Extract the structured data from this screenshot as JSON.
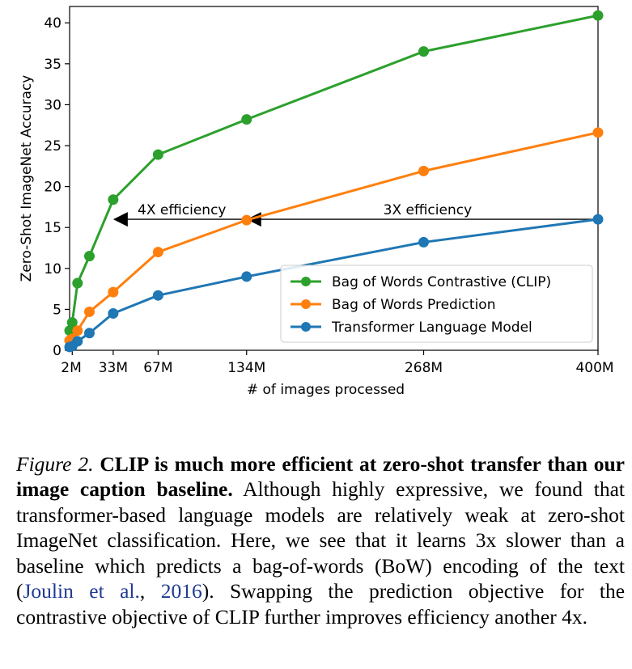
{
  "chart_data": {
    "type": "line",
    "xlabel": "# of images processed",
    "ylabel": "Zero-Shot ImageNet Accuracy",
    "x_tick_labels": [
      "2M",
      "33M",
      "67M",
      "134M",
      "268M",
      "400M"
    ],
    "x_ticks": [
      2,
      33,
      67,
      134,
      268,
      400
    ],
    "xlim": [
      0,
      400
    ],
    "ylim": [
      0,
      42
    ],
    "y_ticks": [
      0,
      5,
      10,
      15,
      20,
      25,
      30,
      35,
      40
    ],
    "grid": false,
    "legend_position": "lower-right",
    "series": [
      {
        "name": "Bag of Words Contrastive (CLIP)",
        "color": "#2ca02c",
        "x": [
          0,
          2,
          6,
          15,
          33,
          67,
          134,
          268,
          400
        ],
        "y": [
          2.4,
          3.4,
          8.2,
          11.5,
          18.4,
          23.9,
          28.2,
          36.5,
          40.9
        ]
      },
      {
        "name": "Bag of Words Prediction",
        "color": "#ff7f0e",
        "x": [
          0,
          2,
          6,
          15,
          33,
          67,
          134,
          268,
          400
        ],
        "y": [
          1.2,
          1.4,
          2.4,
          4.7,
          7.1,
          12.0,
          15.9,
          21.9,
          26.6
        ]
      },
      {
        "name": "Transformer Language Model",
        "color": "#1f77b4",
        "x": [
          0,
          2,
          6,
          15,
          33,
          67,
          134,
          268,
          400
        ],
        "y": [
          0.4,
          0.5,
          1.1,
          2.1,
          4.5,
          6.7,
          9.0,
          13.2,
          16.0
        ]
      }
    ],
    "annotations": [
      {
        "text": "4X efficiency",
        "from_x": 134,
        "to_x": 33,
        "y": 16,
        "label_x": 85
      },
      {
        "text": "3X efficiency",
        "from_x": 400,
        "to_x": 134,
        "y": 16,
        "label_x": 271
      }
    ]
  },
  "caption": {
    "label": "Figure 2.",
    "bold_text": "CLIP is much more efficient at zero-shot transfer than our image caption baseline.",
    "body_before_cite": "Although highly expressive, we found that transformer-based language models are relatively weak at zero-shot ImageNet classification. Here, we see that it learns 3x slower than a baseline which predicts a bag-of-words (BoW) encoding of the text (",
    "cite_author": "Joulin et al.",
    "cite_sep": ", ",
    "cite_year": "2016",
    "body_after_cite": "). Swapping the prediction objective for the contrastive objective of CLIP further improves efficiency another 4x."
  }
}
